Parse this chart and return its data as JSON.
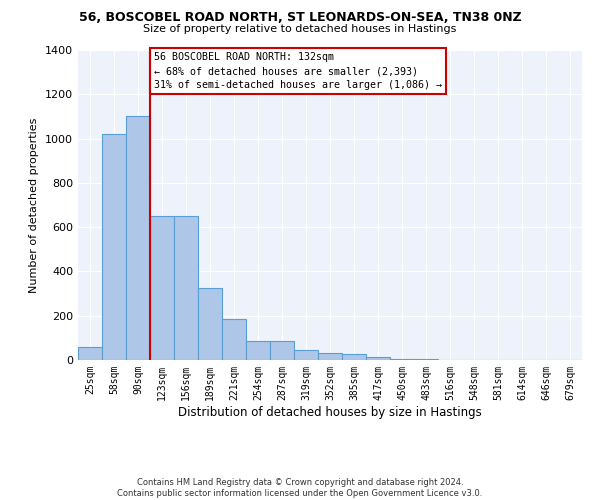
{
  "title_line1": "56, BOSCOBEL ROAD NORTH, ST LEONARDS-ON-SEA, TN38 0NZ",
  "title_line2": "Size of property relative to detached houses in Hastings",
  "xlabel": "Distribution of detached houses by size in Hastings",
  "ylabel": "Number of detached properties",
  "bin_labels": [
    "25sqm",
    "58sqm",
    "90sqm",
    "123sqm",
    "156sqm",
    "189sqm",
    "221sqm",
    "254sqm",
    "287sqm",
    "319sqm",
    "352sqm",
    "385sqm",
    "417sqm",
    "450sqm",
    "483sqm",
    "516sqm",
    "548sqm",
    "581sqm",
    "614sqm",
    "646sqm",
    "679sqm"
  ],
  "bar_values": [
    60,
    1020,
    1100,
    650,
    650,
    325,
    185,
    85,
    85,
    45,
    30,
    25,
    15,
    5,
    3,
    2,
    1,
    1,
    0,
    0,
    0
  ],
  "bar_color": "#aec6e8",
  "bar_edge_color": "#5a9fd4",
  "ylim": [
    0,
    1400
  ],
  "yticks": [
    0,
    200,
    400,
    600,
    800,
    1000,
    1200,
    1400
  ],
  "vline_x_index": 3,
  "vline_color": "#cc0000",
  "annotation_text": "56 BOSCOBEL ROAD NORTH: 132sqm\n← 68% of detached houses are smaller (2,393)\n31% of semi-detached houses are larger (1,086) →",
  "annotation_box_color": "#cc0000",
  "background_color": "#eef2fb",
  "footer_line1": "Contains HM Land Registry data © Crown copyright and database right 2024.",
  "footer_line2": "Contains public sector information licensed under the Open Government Licence v3.0."
}
